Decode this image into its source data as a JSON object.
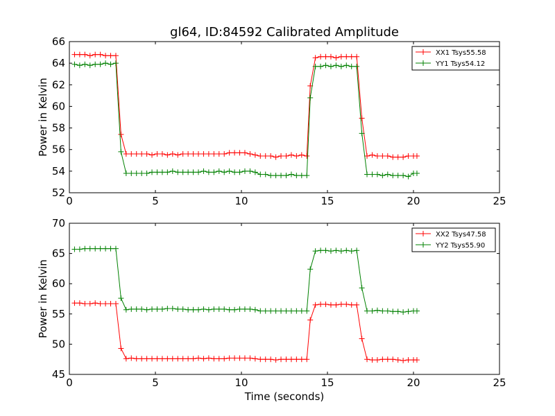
{
  "title": "gl64, ID:84592 Calibrated Amplitude",
  "chart_data": [
    {
      "type": "line",
      "title": "gl64, ID:84592 Calibrated Amplitude",
      "xlabel": "",
      "ylabel": "Power in Kelvin",
      "xlim": [
        0,
        25
      ],
      "ylim": [
        52,
        66
      ],
      "xticks": [
        0,
        5,
        10,
        15,
        20,
        25
      ],
      "yticks": [
        52,
        54,
        56,
        58,
        60,
        62,
        64,
        66
      ],
      "grid": false,
      "legend_position": "top-right",
      "series": [
        {
          "name": "XX1 Tsys55.58",
          "color": "#ff0000",
          "marker": "plus",
          "x": [
            0.3,
            0.6,
            0.9,
            1.2,
            1.5,
            1.8,
            2.1,
            2.4,
            2.7,
            3.0,
            3.3,
            3.6,
            3.9,
            4.2,
            4.5,
            4.8,
            5.1,
            5.4,
            5.7,
            6.0,
            6.3,
            6.6,
            6.9,
            7.2,
            7.5,
            7.8,
            8.1,
            8.4,
            8.7,
            9.0,
            9.3,
            9.6,
            9.9,
            10.2,
            10.5,
            10.8,
            11.1,
            11.4,
            11.7,
            12.0,
            12.3,
            12.6,
            12.9,
            13.2,
            13.5,
            13.8,
            14.0,
            14.3,
            14.6,
            14.9,
            15.2,
            15.5,
            15.8,
            16.1,
            16.4,
            16.7,
            17.0,
            17.3,
            17.6,
            17.9,
            18.2,
            18.5,
            18.8,
            19.1,
            19.4,
            19.7,
            20.0,
            20.2
          ],
          "y": [
            64.8,
            64.8,
            64.8,
            64.7,
            64.8,
            64.8,
            64.7,
            64.7,
            64.7,
            57.4,
            55.6,
            55.6,
            55.6,
            55.6,
            55.6,
            55.5,
            55.6,
            55.6,
            55.5,
            55.6,
            55.5,
            55.6,
            55.6,
            55.6,
            55.6,
            55.6,
            55.6,
            55.6,
            55.6,
            55.6,
            55.7,
            55.7,
            55.7,
            55.7,
            55.6,
            55.5,
            55.4,
            55.4,
            55.4,
            55.3,
            55.4,
            55.4,
            55.5,
            55.4,
            55.5,
            55.4,
            61.9,
            64.5,
            64.6,
            64.6,
            64.6,
            64.5,
            64.6,
            64.6,
            64.6,
            64.6,
            58.9,
            55.4,
            55.5,
            55.4,
            55.4,
            55.4,
            55.3,
            55.3,
            55.3,
            55.4,
            55.4,
            55.4
          ]
        },
        {
          "name": "YY1 Tsys54.12",
          "color": "#008000",
          "marker": "plus",
          "x": [
            0.3,
            0.6,
            0.9,
            1.2,
            1.5,
            1.8,
            2.1,
            2.4,
            2.7,
            3.0,
            3.3,
            3.6,
            3.9,
            4.2,
            4.5,
            4.8,
            5.1,
            5.4,
            5.7,
            6.0,
            6.3,
            6.6,
            6.9,
            7.2,
            7.5,
            7.8,
            8.1,
            8.4,
            8.7,
            9.0,
            9.3,
            9.6,
            9.9,
            10.2,
            10.5,
            10.8,
            11.1,
            11.4,
            11.7,
            12.0,
            12.3,
            12.6,
            12.9,
            13.2,
            13.5,
            13.8,
            14.0,
            14.3,
            14.6,
            14.9,
            15.2,
            15.5,
            15.8,
            16.1,
            16.4,
            16.7,
            17.0,
            17.3,
            17.6,
            17.9,
            18.2,
            18.5,
            18.8,
            19.1,
            19.4,
            19.7,
            20.0,
            20.2
          ],
          "y": [
            63.9,
            63.8,
            63.9,
            63.8,
            63.9,
            63.9,
            64.0,
            63.9,
            64.0,
            55.8,
            53.8,
            53.8,
            53.8,
            53.8,
            53.8,
            53.9,
            53.9,
            53.9,
            53.9,
            54.0,
            53.9,
            53.9,
            53.9,
            53.9,
            53.9,
            54.0,
            53.9,
            53.9,
            54.0,
            53.9,
            54.0,
            53.9,
            53.9,
            54.0,
            54.0,
            53.9,
            53.7,
            53.7,
            53.6,
            53.6,
            53.6,
            53.6,
            53.7,
            53.6,
            53.6,
            53.6,
            60.8,
            63.7,
            63.7,
            63.8,
            63.7,
            63.8,
            63.7,
            63.8,
            63.7,
            63.7,
            57.5,
            53.7,
            53.7,
            53.7,
            53.6,
            53.7,
            53.6,
            53.6,
            53.6,
            53.5,
            53.8,
            53.8
          ]
        }
      ]
    },
    {
      "type": "line",
      "title": "",
      "xlabel": "Time (seconds)",
      "ylabel": "Power in Kelvin",
      "xlim": [
        0,
        25
      ],
      "ylim": [
        45,
        70
      ],
      "xticks": [
        0,
        5,
        10,
        15,
        20,
        25
      ],
      "yticks": [
        45,
        50,
        55,
        60,
        65,
        70
      ],
      "grid": false,
      "legend_position": "top-right",
      "series": [
        {
          "name": "XX2 Tsys47.58",
          "color": "#ff0000",
          "marker": "plus",
          "x": [
            0.3,
            0.6,
            0.9,
            1.2,
            1.5,
            1.8,
            2.1,
            2.4,
            2.7,
            3.0,
            3.3,
            3.6,
            3.9,
            4.2,
            4.5,
            4.8,
            5.1,
            5.4,
            5.7,
            6.0,
            6.3,
            6.6,
            6.9,
            7.2,
            7.5,
            7.8,
            8.1,
            8.4,
            8.7,
            9.0,
            9.3,
            9.6,
            9.9,
            10.2,
            10.5,
            10.8,
            11.1,
            11.4,
            11.7,
            12.0,
            12.3,
            12.6,
            12.9,
            13.2,
            13.5,
            13.8,
            14.0,
            14.3,
            14.6,
            14.9,
            15.2,
            15.5,
            15.8,
            16.1,
            16.4,
            16.7,
            17.0,
            17.3,
            17.6,
            17.9,
            18.2,
            18.5,
            18.8,
            19.1,
            19.4,
            19.7,
            20.0,
            20.2
          ],
          "y": [
            56.8,
            56.8,
            56.7,
            56.7,
            56.8,
            56.7,
            56.7,
            56.7,
            56.7,
            49.3,
            47.6,
            47.7,
            47.6,
            47.6,
            47.6,
            47.6,
            47.6,
            47.6,
            47.6,
            47.6,
            47.6,
            47.6,
            47.6,
            47.6,
            47.7,
            47.6,
            47.7,
            47.6,
            47.6,
            47.6,
            47.7,
            47.7,
            47.7,
            47.7,
            47.7,
            47.6,
            47.5,
            47.5,
            47.5,
            47.4,
            47.5,
            47.5,
            47.5,
            47.5,
            47.5,
            47.5,
            54.0,
            56.5,
            56.6,
            56.6,
            56.5,
            56.5,
            56.6,
            56.6,
            56.5,
            56.5,
            50.9,
            47.5,
            47.4,
            47.4,
            47.5,
            47.5,
            47.5,
            47.4,
            47.3,
            47.4,
            47.4,
            47.4
          ]
        },
        {
          "name": "YY2 Tsys55.90",
          "color": "#008000",
          "marker": "plus",
          "x": [
            0.3,
            0.6,
            0.9,
            1.2,
            1.5,
            1.8,
            2.1,
            2.4,
            2.7,
            3.0,
            3.3,
            3.6,
            3.9,
            4.2,
            4.5,
            4.8,
            5.1,
            5.4,
            5.7,
            6.0,
            6.3,
            6.6,
            6.9,
            7.2,
            7.5,
            7.8,
            8.1,
            8.4,
            8.7,
            9.0,
            9.3,
            9.6,
            9.9,
            10.2,
            10.5,
            10.8,
            11.1,
            11.4,
            11.7,
            12.0,
            12.3,
            12.6,
            12.9,
            13.2,
            13.5,
            13.8,
            14.0,
            14.3,
            14.6,
            14.9,
            15.2,
            15.5,
            15.8,
            16.1,
            16.4,
            16.7,
            17.0,
            17.3,
            17.6,
            17.9,
            18.2,
            18.5,
            18.8,
            19.1,
            19.4,
            19.7,
            20.0,
            20.2
          ],
          "y": [
            65.7,
            65.7,
            65.8,
            65.8,
            65.8,
            65.8,
            65.8,
            65.8,
            65.8,
            57.6,
            55.7,
            55.8,
            55.8,
            55.8,
            55.7,
            55.8,
            55.8,
            55.8,
            55.9,
            55.9,
            55.8,
            55.8,
            55.7,
            55.7,
            55.7,
            55.8,
            55.7,
            55.8,
            55.8,
            55.8,
            55.7,
            55.7,
            55.8,
            55.8,
            55.8,
            55.7,
            55.5,
            55.5,
            55.5,
            55.5,
            55.5,
            55.5,
            55.5,
            55.5,
            55.5,
            55.5,
            62.4,
            65.4,
            65.5,
            65.5,
            65.4,
            65.5,
            65.4,
            65.5,
            65.4,
            65.5,
            59.3,
            55.5,
            55.5,
            55.6,
            55.5,
            55.5,
            55.4,
            55.4,
            55.3,
            55.4,
            55.5,
            55.5
          ]
        }
      ]
    }
  ]
}
